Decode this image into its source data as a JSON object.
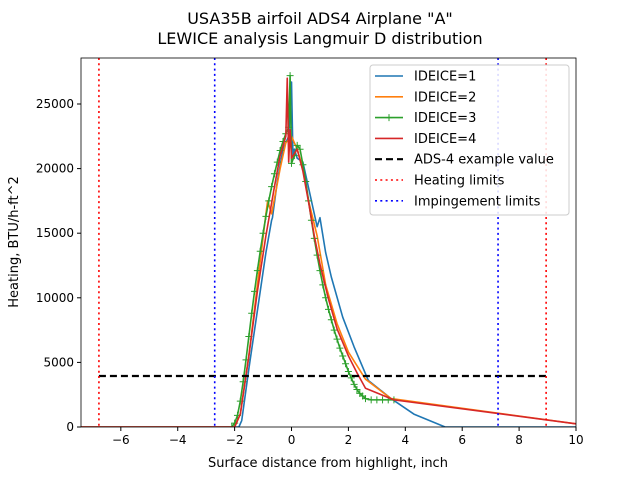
{
  "chart_data": {
    "type": "line",
    "title": "USA35B airfoil ADS4 Airplane \"A\"",
    "subtitle": "LEWICE analysis Langmuir D distribution",
    "xlabel": "Surface distance from highlight, inch",
    "ylabel": "Heating, BTU/h-ft^2",
    "xlim": [
      -7.4,
      10
    ],
    "ylim": [
      0,
      28560
    ],
    "xticks": [
      -6,
      -4,
      -2,
      0,
      2,
      4,
      6,
      8,
      10
    ],
    "xtick_labels": [
      "−6",
      "−4",
      "−2",
      "0",
      "2",
      "4",
      "6",
      "8",
      "10"
    ],
    "yticks": [
      0,
      5000,
      10000,
      15000,
      20000,
      25000
    ],
    "ytick_labels": [
      "0",
      "5000",
      "10000",
      "15000",
      "20000",
      "25000"
    ],
    "grid": false,
    "legend_position": "top-right",
    "series": [
      {
        "name": "IDEICE=1",
        "color": "#1f77b4",
        "marker": "none",
        "x": [
          -7.4,
          -1.85,
          -1.75,
          -1.5,
          -1.2,
          -0.9,
          -0.7,
          -0.67,
          -0.5,
          -0.3,
          -0.1,
          0.0,
          0.05,
          0.1,
          0.2,
          0.4,
          0.6,
          0.9,
          1.0,
          1.2,
          1.4,
          1.8,
          2.2,
          2.7,
          3.5,
          4.3,
          5.4,
          10
        ],
        "y": [
          0,
          0,
          500,
          4500,
          9000,
          13500,
          16000,
          16200,
          19000,
          21500,
          22500,
          26700,
          21000,
          21500,
          20800,
          20500,
          18500,
          15500,
          16200,
          13500,
          11600,
          8500,
          6200,
          3600,
          2200,
          1000,
          0,
          0
        ]
      },
      {
        "name": "IDEICE=2",
        "color": "#ff7f0e",
        "marker": "none",
        "x": [
          -7.4,
          -2.0,
          -1.8,
          -1.5,
          -1.2,
          -0.9,
          -0.84,
          -0.7,
          -0.4,
          -0.2,
          0.0,
          0.2,
          0.4,
          0.6,
          0.9,
          1.2,
          1.6,
          2.0,
          2.6,
          3.5,
          10
        ],
        "y": [
          0,
          0,
          1000,
          5500,
          11000,
          16500,
          17500,
          16500,
          20000,
          22000,
          22500,
          21500,
          20000,
          17500,
          14800,
          11000,
          8000,
          5800,
          3700,
          2200,
          250
        ]
      },
      {
        "name": "IDEICE=3",
        "color": "#2ca02c",
        "marker": "+",
        "x": [
          -2.1,
          -2.0,
          -1.9,
          -1.8,
          -1.7,
          -1.6,
          -1.5,
          -1.4,
          -1.3,
          -1.2,
          -1.1,
          -1.0,
          -0.9,
          -0.8,
          -0.7,
          -0.6,
          -0.5,
          -0.4,
          -0.3,
          -0.2,
          -0.1,
          -0.05,
          0.0,
          0.1,
          0.2,
          0.3,
          0.4,
          0.5,
          0.6,
          0.7,
          0.8,
          0.9,
          1.0,
          1.1,
          1.2,
          1.3,
          1.4,
          1.5,
          1.6,
          1.7,
          1.8,
          1.9,
          2.0,
          2.1,
          2.2,
          2.3,
          2.4,
          2.5,
          2.6,
          2.8,
          3.0,
          3.2,
          3.4,
          3.6
        ],
        "y": [
          0,
          300,
          900,
          2000,
          3500,
          5200,
          7000,
          8800,
          10500,
          12100,
          13600,
          15000,
          16300,
          17500,
          18600,
          19600,
          20500,
          21400,
          22100,
          22700,
          23200,
          27200,
          20400,
          21000,
          21800,
          21500,
          20300,
          19000,
          17500,
          16000,
          14600,
          13300,
          12100,
          11000,
          10000,
          9100,
          8300,
          7500,
          6800,
          6100,
          5500,
          4900,
          4300,
          3800,
          3300,
          2900,
          2600,
          2400,
          2200,
          2100,
          2100,
          2100,
          2100,
          2100
        ]
      },
      {
        "name": "IDEICE=4",
        "color": "#d62728",
        "marker": "none",
        "x": [
          -7.4,
          -2.0,
          -1.8,
          -1.5,
          -1.2,
          -0.9,
          -0.6,
          -0.4,
          -0.2,
          -0.15,
          -0.1,
          -0.05,
          0.0,
          0.2,
          0.4,
          0.6,
          0.8,
          1.0,
          1.3,
          1.6,
          2.0,
          2.3,
          2.6,
          3.6,
          10
        ],
        "y": [
          0,
          0,
          1000,
          5500,
          10500,
          14800,
          18600,
          21000,
          22500,
          27000,
          20500,
          23000,
          20800,
          21500,
          19800,
          17400,
          14800,
          12600,
          9900,
          7600,
          5500,
          4200,
          3000,
          2100,
          250
        ]
      },
      {
        "name": "ADS-4 example value",
        "color": "#000000",
        "style": "dashed",
        "x": [
          -6.77,
          8.95
        ],
        "y": [
          3950,
          3950
        ]
      },
      {
        "name": "Heating limits",
        "color": "#ff0000",
        "style": "dotted",
        "vlines": [
          -6.77,
          8.95
        ]
      },
      {
        "name": "Impingement limits",
        "color": "#0000ff",
        "style": "dotted",
        "vlines": [
          -2.7,
          7.26
        ]
      }
    ]
  }
}
